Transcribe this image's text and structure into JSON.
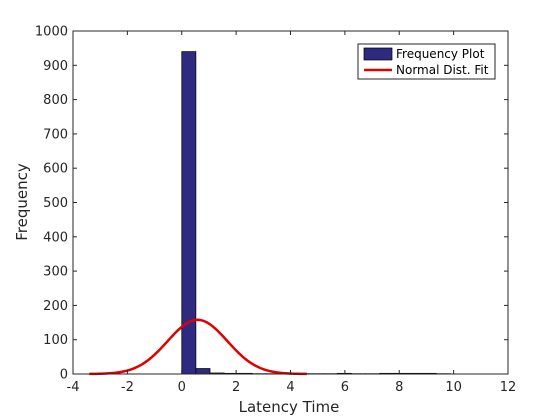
{
  "chart_data": {
    "type": "bar",
    "xlabel": "Latency Time",
    "ylabel": "Frequency",
    "xlim": [
      -4,
      12
    ],
    "ylim": [
      0,
      1000
    ],
    "xticks": [
      "-4",
      "-2",
      "0",
      "2",
      "4",
      "6",
      "8",
      "10",
      "12"
    ],
    "yticks": [
      "0",
      "100",
      "200",
      "300",
      "400",
      "500",
      "600",
      "700",
      "800",
      "900",
      "1000"
    ],
    "grid": false,
    "legend_position": "top-right",
    "bar_width": 0.52,
    "series": [
      {
        "name": "Frequency Plot",
        "type": "bar",
        "color": "#2e2a7f",
        "x": [
          0.26,
          0.78,
          1.3,
          1.82,
          2.34,
          2.86,
          3.38,
          3.9,
          4.42,
          4.94,
          5.46,
          5.98,
          6.5,
          7.02,
          7.54,
          8.06,
          8.58,
          9.1,
          9.62
        ],
        "values": [
          940,
          16,
          3,
          2,
          2,
          1,
          1,
          1,
          1,
          1,
          1,
          2,
          1,
          1,
          2,
          2,
          2,
          2,
          1
        ]
      },
      {
        "name": "Normal Dist. Fit",
        "type": "line",
        "color": "#e00000",
        "mean": 0.58,
        "sd": 1.1,
        "peak": 158,
        "x_range": [
          -3.4,
          4.6
        ]
      }
    ]
  }
}
